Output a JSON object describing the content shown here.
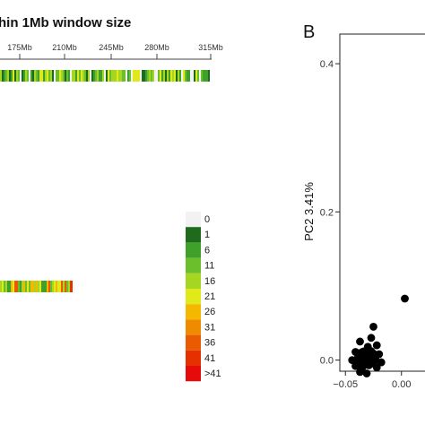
{
  "chart_data": [
    {
      "type": "heatmap",
      "title": "hin 1Mb window size",
      "x_ticks": [
        "175Mb",
        "210Mb",
        "245Mb",
        "280Mb",
        "315Mb"
      ],
      "legend": {
        "labels": [
          "0",
          "1",
          "6",
          "11",
          "16",
          "21",
          "26",
          "31",
          "36",
          "41",
          ">41"
        ],
        "colors": [
          "#f2f2f2",
          "#1e6b1e",
          "#3fa12a",
          "#6cbf2c",
          "#a4d622",
          "#e0ea1a",
          "#f5b800",
          "#ef8b00",
          "#ea5a00",
          "#e63000",
          "#e60a0a"
        ]
      },
      "track1_colors": [
        "#3fa12a",
        "#6cbf2c",
        "#a4d622",
        "#1e6b1e",
        "#f2f2f2",
        "#e0ea1a"
      ],
      "track2_colors": [
        "#3fa12a",
        "#6cbf2c",
        "#a4d622",
        "#e0ea1a",
        "#f5b800",
        "#ea5a00"
      ]
    },
    {
      "type": "scatter",
      "panel_label": "B",
      "ylabel": "PC2 3.41%",
      "xlabel": "",
      "y_ticks": [
        0.0,
        0.2,
        0.4
      ],
      "y_tick_labels": [
        "0.0",
        "0.2",
        "0.4"
      ],
      "x_ticks": [
        -0.05,
        0.0
      ],
      "x_tick_labels": [
        "-0.05",
        "0.00"
      ],
      "xlim": [
        -0.055,
        0.025
      ],
      "ylim": [
        -0.015,
        0.44
      ],
      "points": [
        {
          "x": 0.003,
          "y": 0.083
        },
        {
          "x": -0.025,
          "y": 0.045
        },
        {
          "x": -0.027,
          "y": 0.03
        },
        {
          "x": -0.037,
          "y": 0.025
        },
        {
          "x": -0.03,
          "y": 0.018
        },
        {
          "x": -0.022,
          "y": 0.02
        },
        {
          "x": -0.041,
          "y": 0.011
        },
        {
          "x": -0.034,
          "y": 0.008
        },
        {
          "x": -0.027,
          "y": 0.012
        },
        {
          "x": -0.02,
          "y": 0.008
        },
        {
          "x": -0.044,
          "y": 0.0
        },
        {
          "x": -0.038,
          "y": 0.0
        },
        {
          "x": -0.031,
          "y": 0.001
        },
        {
          "x": -0.024,
          "y": 0.0
        },
        {
          "x": -0.018,
          "y": -0.003
        },
        {
          "x": -0.041,
          "y": -0.008
        },
        {
          "x": -0.035,
          "y": -0.01
        },
        {
          "x": -0.029,
          "y": -0.007
        },
        {
          "x": -0.022,
          "y": -0.01
        },
        {
          "x": -0.037,
          "y": -0.016
        },
        {
          "x": -0.031,
          "y": -0.018
        }
      ]
    }
  ]
}
